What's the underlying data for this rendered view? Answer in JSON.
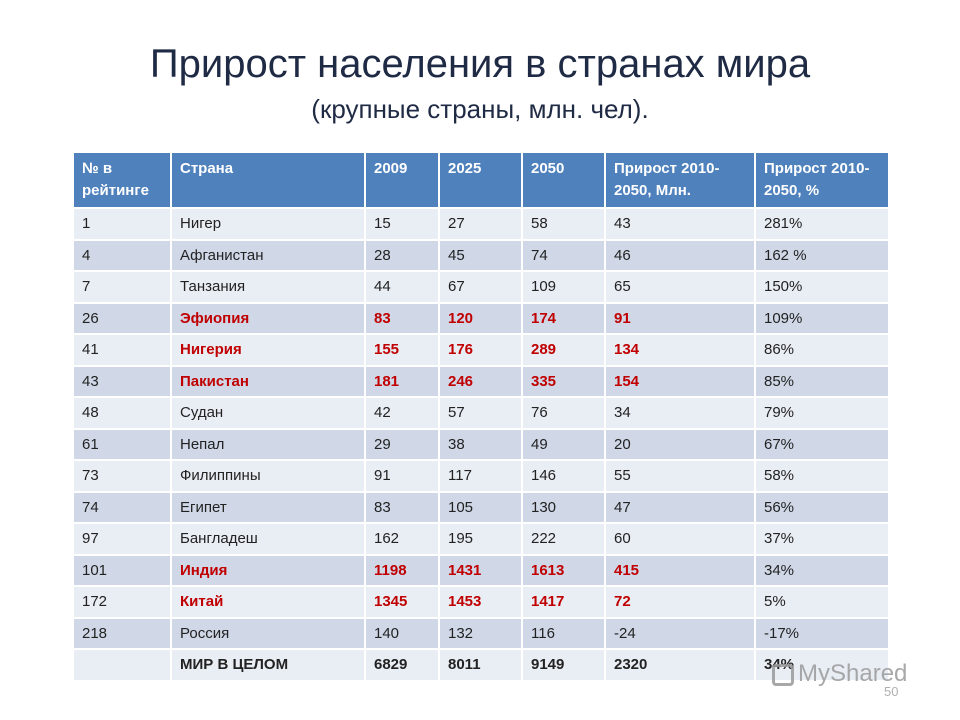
{
  "slide": {
    "title": "Прирост населения в странах мира",
    "subtitle": "(крупные страны, млн. чел).",
    "page_number": "50"
  },
  "table": {
    "headers": [
      "№ в рейтинге",
      "Страна",
      "2009",
      "2025",
      "2050",
      "Прирост 2010-2050, Млн.",
      "Прирост 2010-2050, %"
    ],
    "rows": [
      [
        "1",
        "Нигер",
        "15",
        "27",
        "58",
        "43",
        "281%"
      ],
      [
        "4",
        "Афганистан",
        "28",
        "45",
        "74",
        "46",
        "162 %"
      ],
      [
        "7",
        "Танзания",
        "44",
        "67",
        "109",
        "65",
        "150%"
      ],
      [
        "26",
        "Эфиопия",
        "83",
        "120",
        "174",
        "91",
        "109%"
      ],
      [
        "41",
        "Нигерия",
        "155",
        "176",
        "289",
        "134",
        "86%"
      ],
      [
        "43",
        "Пакистан",
        "181",
        "246",
        "335",
        "154",
        "85%"
      ],
      [
        "48",
        "Судан",
        "42",
        "57",
        "76",
        "34",
        "79%"
      ],
      [
        "61",
        "Непал",
        "29",
        "38",
        "49",
        "20",
        "67%"
      ],
      [
        "73",
        "Филиппины",
        "91",
        "117",
        "146",
        "55",
        "58%"
      ],
      [
        "74",
        "Египет",
        "83",
        "105",
        "130",
        "47",
        "56%"
      ],
      [
        "97",
        "Бангладеш",
        "162",
        "195",
        "222",
        "60",
        "37%"
      ],
      [
        "101",
        "Индия",
        "1198",
        "1431",
        "1613",
        "415",
        "34%"
      ],
      [
        "172",
        "Китай",
        "1345",
        "1453",
        "1417",
        "72",
        "5%"
      ],
      [
        "218",
        "Россия",
        "140",
        "132",
        "116",
        "-24",
        "-17%"
      ],
      [
        "",
        "МИР В ЦЕЛОМ",
        "6829",
        "8011",
        "9149",
        "2320",
        "34%"
      ]
    ]
  },
  "highlighted_countries": [
    "Эфиопия",
    "Нигерия",
    "Пакистан",
    "Индия",
    "Китай"
  ],
  "colors": {
    "header_bg": "#4f81bd",
    "row_light": "#e9edf4",
    "row_dark": "#d0d8e8",
    "highlight_text": "#c00000",
    "title_text": "#1f2a44"
  },
  "watermark": {
    "text": "MyShared",
    "icon": "myshared-logo-icon"
  }
}
